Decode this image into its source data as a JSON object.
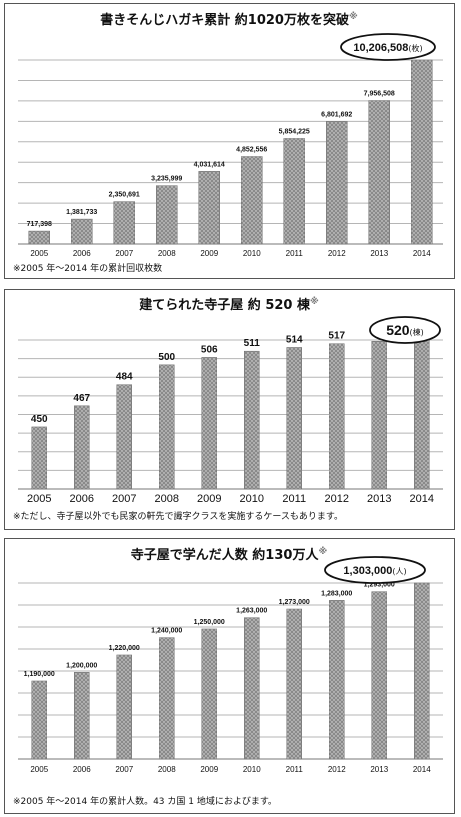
{
  "chart_data": [
    {
      "type": "bar",
      "title": "書きそんじハガキ累計 約1020万枚を突破",
      "title_mark": "※",
      "categories": [
        "2005",
        "2006",
        "2007",
        "2008",
        "2009",
        "2010",
        "2011",
        "2012",
        "2013",
        "2014"
      ],
      "values": [
        717398,
        1381733,
        2350691,
        3235999,
        4031614,
        4852556,
        5854225,
        6801692,
        7956508,
        10206508
      ],
      "data_labels": [
        "717,398",
        "1,381,733",
        "2,350,691",
        "3,235,999",
        "4,031,614",
        "4,852,556",
        "5,854,225",
        "6,801,692",
        "7,956,508",
        ""
      ],
      "callout": {
        "value": "10,206,508",
        "unit": "(枚)"
      },
      "note": "※2005 年～2014 年の累計回収枚数",
      "ylim": [
        0,
        10206508
      ],
      "grid": true,
      "bar_color": "#8a8a8a"
    },
    {
      "type": "bar",
      "title": "建てられた寺子屋 約 520 棟",
      "title_mark": "※",
      "categories": [
        "2005",
        "2006",
        "2007",
        "2008",
        "2009",
        "2010",
        "2011",
        "2012",
        "2013",
        "2014"
      ],
      "values": [
        450,
        467,
        484,
        500,
        506,
        511,
        514,
        517,
        519,
        520
      ],
      "data_labels": [
        "450",
        "467",
        "484",
        "500",
        "506",
        "511",
        "514",
        "517",
        "519",
        ""
      ],
      "callout": {
        "value": "520",
        "unit": "(棟)"
      },
      "note": "※ただし、寺子屋以外でも民家の軒先で識字クラスを実施するケースもあります。",
      "ylim": [
        400,
        520
      ],
      "grid": true,
      "bar_color": "#8a8a8a"
    },
    {
      "type": "bar",
      "title": "寺子屋で学んだ人数 約130万人",
      "title_mark": "※",
      "categories": [
        "2005",
        "2006",
        "2007",
        "2008",
        "2009",
        "2010",
        "2011",
        "2012",
        "2013",
        "2014"
      ],
      "values": [
        1190000,
        1200000,
        1220000,
        1240000,
        1250000,
        1263000,
        1273000,
        1283000,
        1293000,
        1303000
      ],
      "data_labels": [
        "1,190,000",
        "1,200,000",
        "1,220,000",
        "1,240,000",
        "1,250,000",
        "1,263,000",
        "1,273,000",
        "1,283,000",
        "1,293,000",
        ""
      ],
      "callout": {
        "value": "1,303,000",
        "unit": "(人)"
      },
      "note": "※2005 年～2014 年の累計人数。43 カ国 1 地域におよびます。",
      "ylim": [
        1100000,
        1303000
      ],
      "grid": true,
      "bar_color": "#8a8a8a"
    }
  ]
}
